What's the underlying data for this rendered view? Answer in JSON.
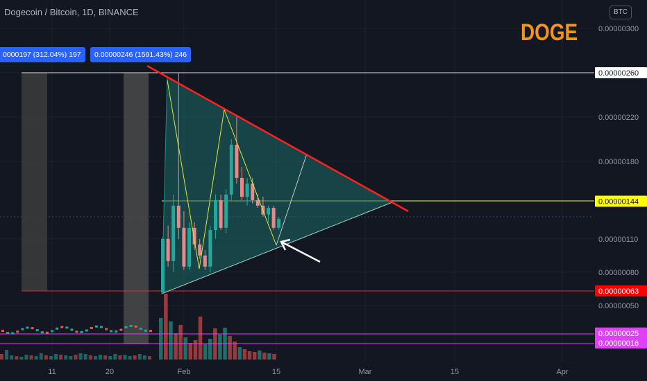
{
  "header": {
    "title": "Dogecoin / Bitcoin, 1D, BINANCE",
    "watermark": "DOGE",
    "currency": "BTC"
  },
  "measures": [
    {
      "label": "0000197 (312.04%) 197"
    },
    {
      "label": "0.00000246 (1591.43%) 246"
    }
  ],
  "axis": {
    "y_ticks": [
      "0.00000300",
      "0.00000260",
      "0.00000220",
      "0.00000180",
      "0.00000144",
      "0.00000110",
      "0.00000080",
      "0.00000063",
      "0.00000050",
      "0.00000025",
      "0.00000016"
    ],
    "x_ticks": [
      "11",
      "20",
      "Feb",
      "15",
      "Mar",
      "15",
      "Apr"
    ]
  },
  "levels": [
    {
      "price": "0.00000260",
      "color": "#ffffff",
      "text_color": "#131722"
    },
    {
      "price": "0.00000144",
      "color": "#ffff00",
      "text_color": "#131722"
    },
    {
      "price": "0.00000063",
      "color": "#ff0000",
      "text_color": "#ffffff"
    },
    {
      "price": "0.00000025",
      "color": "#e040fb",
      "text_color": "#ffffff"
    },
    {
      "price": "0.00000016",
      "color": "#e040fb",
      "text_color": "#ffffff"
    }
  ],
  "colors": {
    "background": "#131722",
    "up": "#26a69a",
    "down": "#ef5350",
    "wedge_fill": "#1b6b66",
    "trendline": "#ff2020",
    "zigzag": "#ffff00",
    "range_box": "#4a4a4a",
    "measure_bg": "#2962ff",
    "watermark": "#f7931a"
  },
  "chart_data": {
    "type": "candlestick",
    "title": "Dogecoin / Bitcoin, 1D, BINANCE",
    "x_ticks": [
      "11",
      "20",
      "Feb",
      "15",
      "Mar",
      "15",
      "Apr"
    ],
    "y_range": [
      1e-07,
      3.1e-06
    ],
    "candles_late": [
      {
        "o": 6.2e-07,
        "h": 1.12e-06,
        "l": 6e-07,
        "c": 1.1e-06
      },
      {
        "o": 1.1e-06,
        "h": 1.22e-06,
        "l": 8.5e-07,
        "c": 9e-07
      },
      {
        "o": 9e-07,
        "h": 1.5e-06,
        "l": 8e-07,
        "c": 1.4e-06
      },
      {
        "o": 1.4e-06,
        "h": 2.6e-06,
        "l": 1.1e-06,
        "c": 1.2e-06
      },
      {
        "o": 1.2e-06,
        "h": 1.35e-06,
        "l": 8.2e-07,
        "c": 8.5e-07
      },
      {
        "o": 8.5e-07,
        "h": 1.25e-06,
        "l": 8.2e-07,
        "c": 1.2e-06
      },
      {
        "o": 1.2e-06,
        "h": 1.25e-06,
        "l": 1e-06,
        "c": 1.05e-06
      },
      {
        "o": 1.05e-06,
        "h": 1.1e-06,
        "l": 9.2e-07,
        "c": 9.5e-07
      },
      {
        "o": 9.5e-07,
        "h": 1e-06,
        "l": 8.2e-07,
        "c": 8.5e-07
      },
      {
        "o": 8.5e-07,
        "h": 1.22e-06,
        "l": 8e-07,
        "c": 1.18e-06
      },
      {
        "o": 1.18e-06,
        "h": 1.5e-06,
        "l": 1.1e-06,
        "c": 1.45e-06
      },
      {
        "o": 1.45e-06,
        "h": 1.5e-06,
        "l": 1.18e-06,
        "c": 1.2e-06
      },
      {
        "o": 1.2e-06,
        "h": 1.55e-06,
        "l": 1.15e-06,
        "c": 1.5e-06
      },
      {
        "o": 1.5e-06,
        "h": 2e-06,
        "l": 1.45e-06,
        "c": 1.95e-06
      },
      {
        "o": 1.95e-06,
        "h": 2.22e-06,
        "l": 1.6e-06,
        "c": 1.65e-06
      },
      {
        "o": 1.65e-06,
        "h": 1.75e-06,
        "l": 1.45e-06,
        "c": 1.48e-06
      },
      {
        "o": 1.48e-06,
        "h": 1.65e-06,
        "l": 1.4e-06,
        "c": 1.6e-06
      },
      {
        "o": 1.6e-06,
        "h": 1.65e-06,
        "l": 1.42e-06,
        "c": 1.45e-06
      },
      {
        "o": 1.45e-06,
        "h": 1.5e-06,
        "l": 1.38e-06,
        "c": 1.4e-06
      },
      {
        "o": 1.4e-06,
        "h": 1.48e-06,
        "l": 1.3e-06,
        "c": 1.32e-06
      },
      {
        "o": 1.32e-06,
        "h": 1.4e-06,
        "l": 1.25e-06,
        "c": 1.38e-06
      },
      {
        "o": 1.38e-06,
        "h": 1.4e-06,
        "l": 1.18e-06,
        "c": 1.2e-06
      },
      {
        "o": 1.2e-06,
        "h": 1.3e-06,
        "l": 1.18e-06,
        "c": 1.28e-06
      }
    ]
  }
}
